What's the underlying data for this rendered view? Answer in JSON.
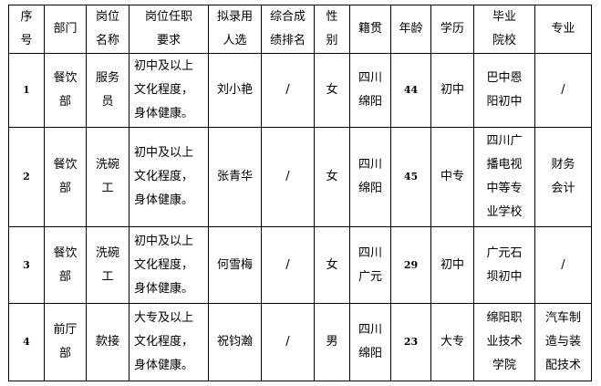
{
  "headers": [
    "序号",
    "部门",
    "岗位名称",
    "岗位任职要求",
    "拟录用人选",
    "综合成绩排名",
    "性别",
    "籍贯",
    "年龄",
    "学历",
    "毕业院校",
    "专业"
  ],
  "header_lines": [
    [
      "序",
      "号"
    ],
    [
      "部门"
    ],
    [
      "岗位",
      "名称"
    ],
    [
      "岗位任职",
      "要求"
    ],
    [
      "拟录用",
      "人选"
    ],
    [
      "综合成",
      "绩排名"
    ],
    [
      "性",
      "别"
    ],
    [
      "籍贯"
    ],
    [
      "年龄"
    ],
    [
      "学历"
    ],
    [
      "毕业",
      "院校"
    ],
    [
      "专业"
    ]
  ],
  "rows": [
    {
      "no": "1",
      "dept": [
        "餐饮",
        "部"
      ],
      "position": [
        "服务",
        "员"
      ],
      "requirement": [
        "初中及以上",
        "文化程度，",
        "身体健康。"
      ],
      "candidate": "刘小艳",
      "rank": "/",
      "gender": "女",
      "origin": [
        "四川",
        "绵阳"
      ],
      "age": "44",
      "education": "初中",
      "school": [
        "巴中恩",
        "阳初中"
      ],
      "major": [
        "/"
      ]
    },
    {
      "no": "2",
      "dept": [
        "餐饮",
        "部"
      ],
      "position": [
        "洗碗",
        "工"
      ],
      "requirement": [
        "初中及以上",
        "文化程度，",
        "身体健康。"
      ],
      "candidate": "张青华",
      "rank": "/",
      "gender": "女",
      "origin": [
        "四川",
        "绵阳"
      ],
      "age": "45",
      "education": "中专",
      "school": [
        "四川广",
        "播电视",
        "中等专",
        "业学校"
      ],
      "major": [
        "财务",
        "会计"
      ]
    },
    {
      "no": "3",
      "dept": [
        "餐饮",
        "部"
      ],
      "position": [
        "洗碗",
        "工"
      ],
      "requirement": [
        "初中及以上",
        "文化程度，",
        "身体健康。"
      ],
      "candidate": "何雪梅",
      "rank": "/",
      "gender": "女",
      "origin": [
        "四川",
        "广元"
      ],
      "age": "29",
      "education": "初中",
      "school": [
        "广元石",
        "坝初中"
      ],
      "major": [
        "/"
      ]
    },
    {
      "no": "4",
      "dept": [
        "前厅",
        "部"
      ],
      "position": [
        "款接"
      ],
      "requirement": [
        "大专及以上",
        "文化程度，",
        "身体健康。"
      ],
      "candidate": "祝钧瀚",
      "rank": "/",
      "gender": "男",
      "origin": [
        "四川",
        "绵阳"
      ],
      "age": "23",
      "education": "大专",
      "school": [
        "绵阳职",
        "业技术",
        "学院"
      ],
      "major": [
        "汽车制",
        "造与装",
        "配技术"
      ]
    }
  ]
}
